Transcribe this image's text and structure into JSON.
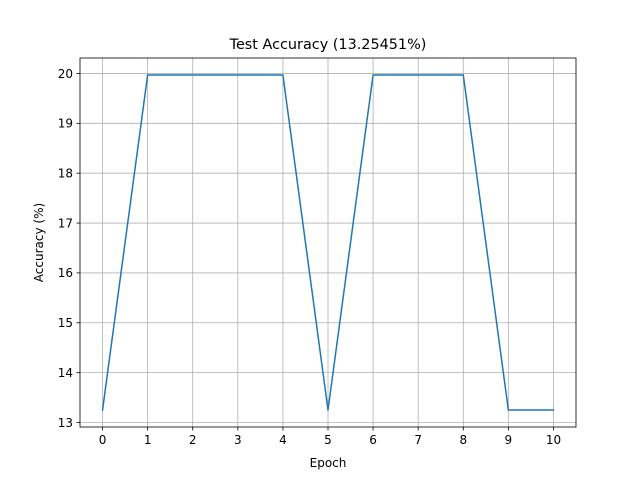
{
  "chart_data": {
    "type": "line",
    "title": "Test Accuracy (13.25451%)",
    "xlabel": "Epoch",
    "ylabel": "Accuracy (%)",
    "x": [
      0,
      1,
      2,
      3,
      4,
      5,
      6,
      7,
      8,
      9,
      10
    ],
    "series": [
      {
        "values": [
          13.25,
          19.97,
          19.97,
          19.97,
          19.97,
          13.25,
          19.97,
          19.97,
          19.97,
          13.25,
          13.25
        ],
        "color": "#1f77b4"
      }
    ],
    "xticks": [
      0,
      1,
      2,
      3,
      4,
      5,
      6,
      7,
      8,
      9,
      10
    ],
    "yticks": [
      13,
      14,
      15,
      16,
      17,
      18,
      19,
      20
    ],
    "xlim": [
      -0.5,
      10.5
    ],
    "ylim": [
      12.91,
      20.31
    ],
    "grid": true,
    "legend": "none"
  }
}
